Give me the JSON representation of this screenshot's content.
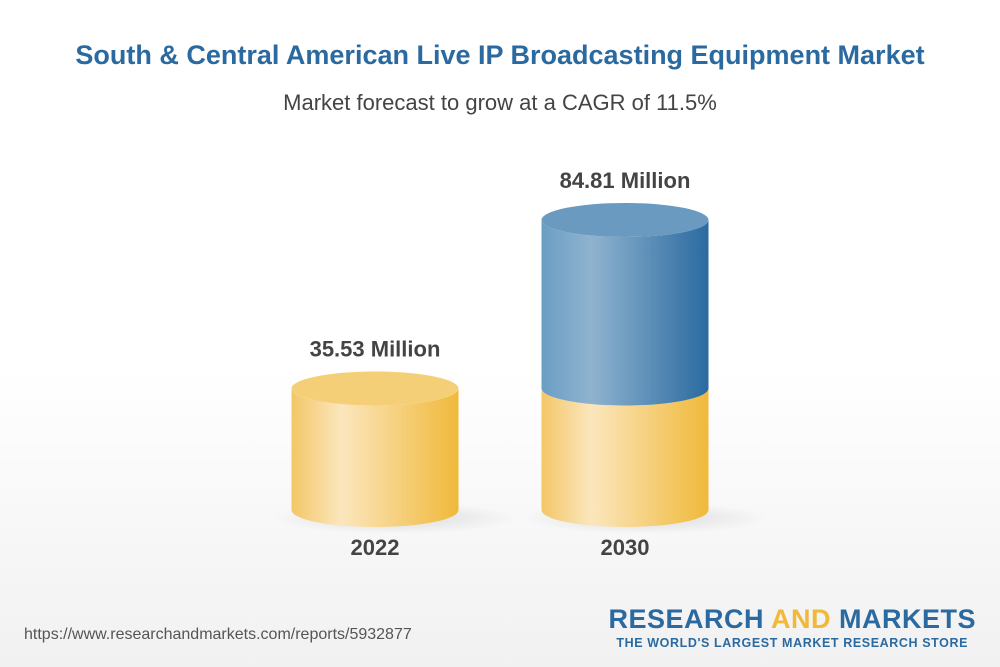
{
  "title": "South & Central American Live IP Broadcasting Equipment Market",
  "subtitle": "Market forecast to grow at a CAGR of 11.5%",
  "chart_data": {
    "type": "bar",
    "style": "3d-cylinder",
    "categories": [
      "2022",
      "2030"
    ],
    "values": [
      35.53,
      84.81
    ],
    "data_labels": [
      "35.53 Million",
      "84.81 Million"
    ],
    "unit": "Million",
    "colors": {
      "base": "#f0b93a",
      "growth": "#2a6aa0"
    },
    "grid": false
  },
  "footer": {
    "url": "https://www.researchandmarkets.com/reports/5932877",
    "logo_part1": "RESEARCH ",
    "logo_part2": "AND",
    "logo_part3": " MARKETS",
    "tagline": "THE WORLD'S LARGEST MARKET RESEARCH STORE"
  }
}
